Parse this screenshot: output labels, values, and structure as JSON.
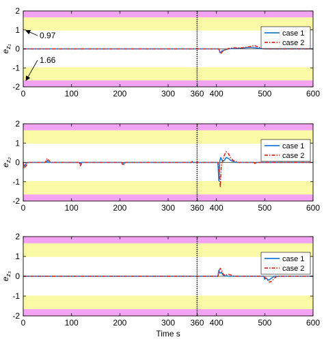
{
  "chart_data": [
    {
      "type": "line",
      "ylabel": "e",
      "ylabel_sub": "z₁",
      "xlim": [
        0,
        600
      ],
      "ylim": [
        -2,
        2
      ],
      "xticks": [
        0,
        100,
        200,
        300,
        360,
        400,
        500,
        600
      ],
      "yticks": [
        2,
        1,
        0,
        -1,
        -2
      ],
      "grid": false,
      "legend_position": "top-right",
      "vline_x": 360,
      "bands": [
        {
          "from": 1.66,
          "to": 2,
          "color": "#f2a3f2"
        },
        {
          "from": 0.97,
          "to": 1.66,
          "color": "#fafaa6"
        },
        {
          "from": -1.66,
          "to": -0.97,
          "color": "#fafaa6"
        },
        {
          "from": -2,
          "to": -1.66,
          "color": "#f2a3f2"
        }
      ],
      "annotations": [
        {
          "text": "0.97",
          "points_to": [
            0,
            0.97
          ]
        },
        {
          "text": "1.66",
          "points_to": [
            0,
            -1.66
          ]
        }
      ],
      "series": [
        {
          "name": "case 1",
          "color": "#1f77d4",
          "style": "solid",
          "x": [
            0,
            405,
            407,
            409,
            412,
            418,
            425,
            435,
            450,
            470,
            480,
            490,
            500,
            600
          ],
          "y": [
            0,
            0,
            -0.15,
            -0.2,
            -0.1,
            -0.05,
            0,
            0.02,
            0.04,
            0.08,
            0.06,
            0.02,
            0,
            0
          ]
        },
        {
          "name": "case 2",
          "color": "#d62b1f",
          "style": "dashdot",
          "x": [
            0,
            405,
            407,
            409,
            412,
            418,
            425,
            435,
            450,
            470,
            478,
            485,
            492,
            500,
            600
          ],
          "y": [
            0,
            0,
            -0.2,
            -0.25,
            -0.15,
            -0.05,
            0.02,
            0.05,
            0.05,
            0.12,
            0.18,
            0.12,
            0.05,
            0,
            0
          ]
        }
      ]
    },
    {
      "type": "line",
      "ylabel": "e",
      "ylabel_sub": "z₂",
      "xlim": [
        0,
        600
      ],
      "ylim": [
        -2,
        2
      ],
      "xticks": [
        0,
        100,
        200,
        300,
        360,
        400,
        500,
        600
      ],
      "yticks": [
        2,
        1,
        0,
        -1,
        -2
      ],
      "grid": false,
      "legend_position": "top-right",
      "vline_x": 360,
      "bands": [
        {
          "from": 1.66,
          "to": 2,
          "color": "#f2a3f2"
        },
        {
          "from": 0.97,
          "to": 1.66,
          "color": "#fafaa6"
        },
        {
          "from": -1.66,
          "to": -0.97,
          "color": "#fafaa6"
        },
        {
          "from": -2,
          "to": -1.66,
          "color": "#f2a3f2"
        }
      ],
      "annotations": [],
      "series": [
        {
          "name": "case 1",
          "color": "#1f77d4",
          "style": "solid",
          "x": [
            0,
            2,
            4,
            6,
            8,
            46,
            48,
            50,
            52,
            116,
            118,
            120,
            204,
            206,
            208,
            210,
            348,
            350,
            352,
            403,
            405,
            407,
            409,
            411,
            413,
            416,
            420,
            425,
            430,
            435,
            440,
            478,
            480,
            482,
            600
          ],
          "y": [
            0,
            -0.2,
            -0.15,
            -0.05,
            0,
            0,
            0.05,
            0.1,
            0,
            0,
            -0.08,
            0,
            0,
            -0.1,
            -0.05,
            0,
            0,
            0.04,
            0,
            0,
            -0.95,
            0.1,
            0.25,
            0.15,
            0.05,
            0.1,
            0.25,
            0.2,
            0.1,
            0.05,
            0,
            0,
            -0.05,
            0,
            0
          ]
        },
        {
          "name": "case 2",
          "color": "#d62b1f",
          "style": "dashdot",
          "x": [
            0,
            2,
            4,
            8,
            10,
            46,
            48,
            50,
            53,
            56,
            116,
            118,
            120,
            122,
            204,
            206,
            209,
            212,
            348,
            350,
            353,
            403,
            406,
            408,
            410,
            413,
            416,
            420,
            425,
            430,
            435,
            440,
            445,
            478,
            480,
            483,
            600
          ],
          "y": [
            0,
            -0.3,
            -0.25,
            -0.1,
            0,
            0,
            0.15,
            0.2,
            0.1,
            0,
            0,
            -0.18,
            -0.1,
            0,
            0,
            -0.15,
            -0.1,
            0,
            0,
            0.05,
            0,
            0,
            -0.5,
            -1.3,
            -0.2,
            0.1,
            0.35,
            0.55,
            0.45,
            0.2,
            0.1,
            0.05,
            0,
            0,
            -0.08,
            0,
            0
          ]
        }
      ]
    },
    {
      "type": "line",
      "ylabel": "e",
      "ylabel_sub": "z₃",
      "xlabel": "Time s",
      "xlim": [
        0,
        600
      ],
      "ylim": [
        -2,
        2
      ],
      "xticks": [
        0,
        100,
        200,
        300,
        360,
        400,
        500,
        600
      ],
      "yticks": [
        2,
        1,
        0,
        -1,
        -2
      ],
      "grid": false,
      "legend_position": "top-right",
      "vline_x": 360,
      "bands": [
        {
          "from": 1.66,
          "to": 2,
          "color": "#f2a3f2"
        },
        {
          "from": 0.97,
          "to": 1.66,
          "color": "#fafaa6"
        },
        {
          "from": -1.66,
          "to": -0.97,
          "color": "#fafaa6"
        },
        {
          "from": -2,
          "to": -1.66,
          "color": "#f2a3f2"
        }
      ],
      "annotations": [],
      "series": [
        {
          "name": "case 1",
          "color": "#1f77d4",
          "style": "solid",
          "x": [
            0,
            403,
            405,
            407,
            410,
            414,
            420,
            425,
            430,
            498,
            500,
            502,
            508,
            514,
            520,
            600
          ],
          "y": [
            0,
            0,
            0.3,
            0.15,
            0.2,
            0.05,
            0.02,
            0,
            0,
            0,
            -0.15,
            -0.08,
            -0.2,
            -0.1,
            0,
            0
          ]
        },
        {
          "name": "case 2",
          "color": "#d62b1f",
          "style": "dashdot",
          "x": [
            0,
            403,
            405,
            408,
            411,
            414,
            418,
            425,
            432,
            436,
            498,
            502,
            506,
            510,
            514,
            518,
            522,
            526,
            600
          ],
          "y": [
            0,
            0,
            0.2,
            0.4,
            0.3,
            0.1,
            0.05,
            0.1,
            0.05,
            0,
            0,
            -0.1,
            -0.2,
            -0.3,
            -0.25,
            -0.15,
            -0.05,
            0,
            0
          ]
        }
      ]
    }
  ]
}
